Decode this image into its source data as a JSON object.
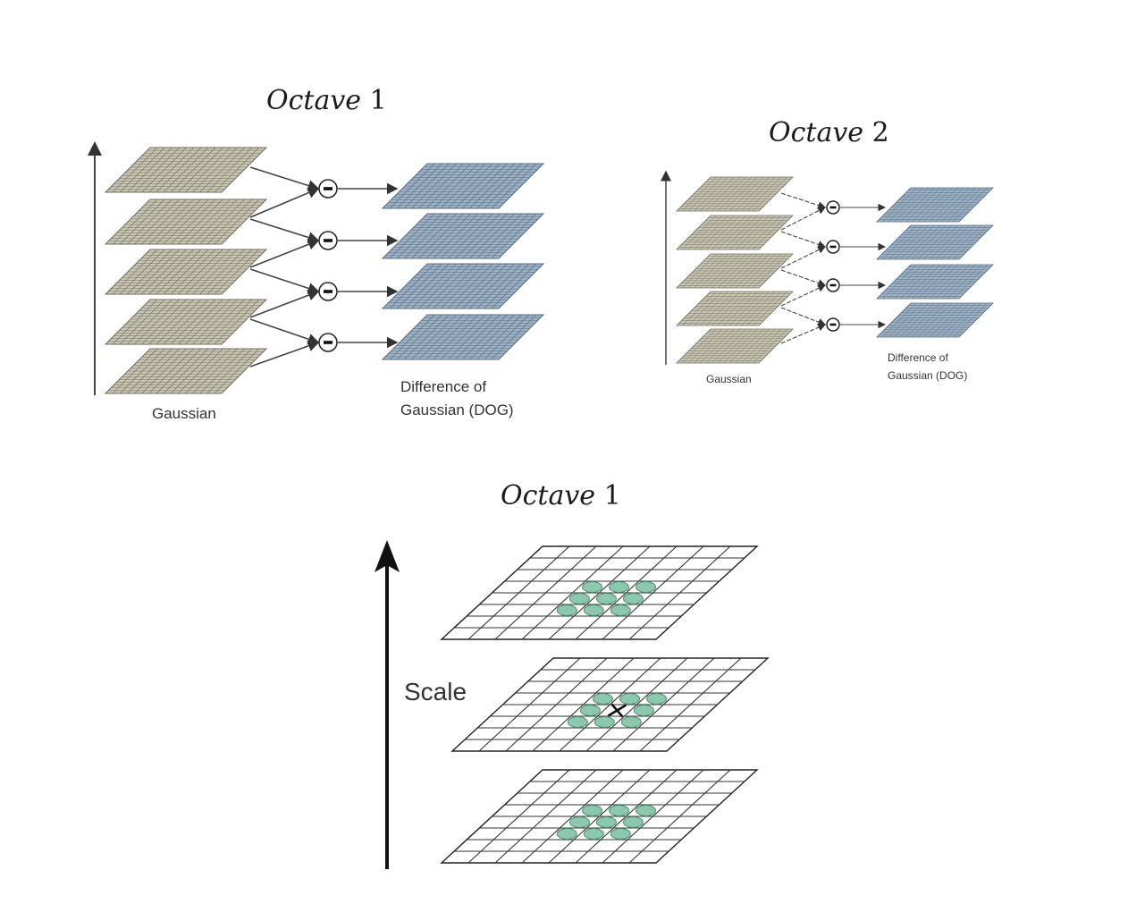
{
  "panels": {
    "octave1_top": {
      "title_word": "Octave",
      "title_num": "1",
      "gaussian_label": "Gaussian",
      "dog_label_line1": "Difference of",
      "dog_label_line2": "Gaussian (DOG)",
      "gaussian_layers": 5,
      "dog_layers": 4,
      "operator_symbol": "−"
    },
    "octave2_top": {
      "title_word": "Octave",
      "title_num": "2",
      "gaussian_label": "Gaussian",
      "dog_label_line1": "Difference of",
      "dog_label_line2": "Gaussian (DOG)",
      "gaussian_layers": 5,
      "dog_layers": 4,
      "operator_symbol": "−"
    },
    "octave1_bottom": {
      "title_word": "Octave",
      "title_num": "1",
      "axis_label": "Scale",
      "center_marker": "X",
      "layers": 3
    }
  },
  "colors": {
    "gaussian_fill": "#c9c7b3",
    "gaussian_line": "#6f6c5c",
    "dog_fill": "#9fb3c6",
    "dog_line": "#556a80",
    "neighbor_fill": "#8cc8ae",
    "neighbor_stroke": "#4a8f74",
    "ink": "#1a1a1a"
  }
}
